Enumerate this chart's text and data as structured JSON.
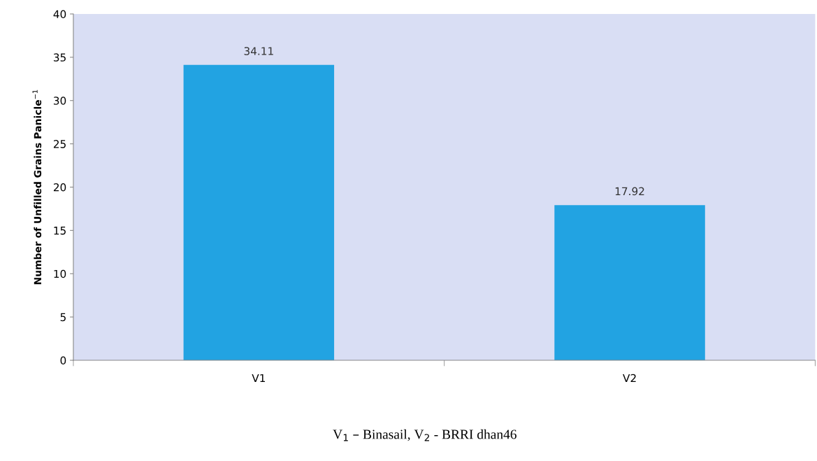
{
  "chart_data": {
    "type": "bar",
    "ylabel": "Number of Unfilled Grains Panicle$^{−1}$",
    "categories": [
      "V1",
      "V2"
    ],
    "values": [
      34.11,
      17.92
    ],
    "color": "#22a3e2",
    "ylim": [
      0,
      40
    ],
    "yticks": [
      0,
      5,
      10,
      15,
      20,
      25,
      30,
      35,
      40
    ],
    "grid": false,
    "legend": false,
    "data_labels": true,
    "annotations": [
      "V$_{1}$ – Binasail, V$_{2}$ - BRRI dhan46"
    ]
  }
}
